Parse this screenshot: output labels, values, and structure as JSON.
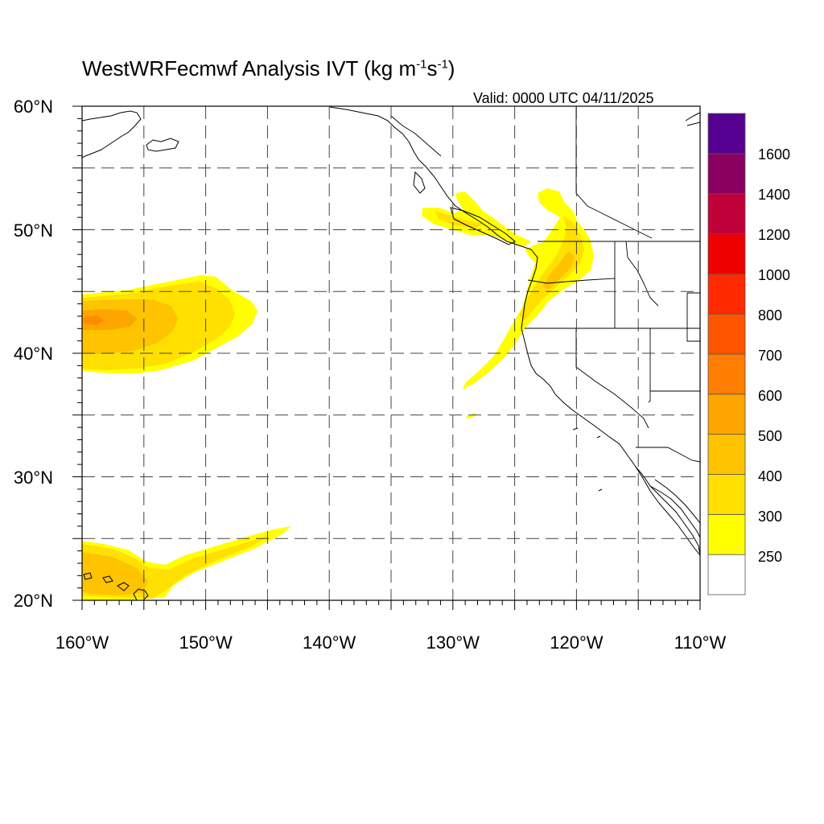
{
  "title": {
    "main": "WestWRFecmwf Analysis IVT (kg m",
    "exp1": "-1",
    "mid": "s",
    "exp2": "-1",
    "close": ")"
  },
  "valid_time": "Valid: 0000 UTC 04/11/2025",
  "map": {
    "lon_range": [
      -160,
      -110
    ],
    "lat_range": [
      20,
      60
    ],
    "lon_ticks": [
      "160°W",
      "150°W",
      "140°W",
      "130°W",
      "120°W",
      "110°W"
    ],
    "lat_ticks": [
      "60°N",
      "50°N",
      "40°N",
      "30°N",
      "20°N"
    ],
    "grid_lines": "dashed, every 5 degrees"
  },
  "colorbar": {
    "labels": [
      "1600",
      "1400",
      "1200",
      "1000",
      "800",
      "700",
      "600",
      "500",
      "400",
      "300",
      "250"
    ],
    "colors": [
      "#ffffff",
      "#ffff00",
      "#ffe000",
      "#ffc300",
      "#ffa500",
      "#ff7d00",
      "#ff5500",
      "#ff2a00",
      "#ee0000",
      "#c00038",
      "#8a0060",
      "#550090"
    ]
  },
  "plumes": {
    "central_pacific": {
      "max_level": "500",
      "center": "42.5°N 159°W"
    },
    "subtropical": {
      "max_level": "400",
      "center": "22°N 155°W"
    },
    "pacific_northwest": {
      "max_level": "400",
      "center": "46°N 122°W"
    }
  }
}
